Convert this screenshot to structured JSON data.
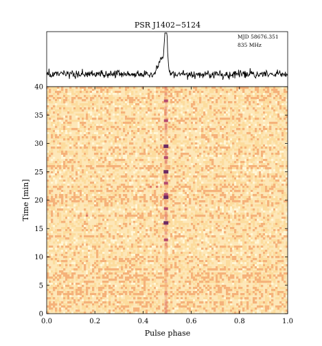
{
  "chart_data": [
    {
      "type": "line",
      "title": "PSR J1402−5124",
      "annotation_lines": [
        "MJD 58676.351",
        "835 MHz"
      ],
      "annotation_placement": "top-right",
      "xlim": [
        0.0,
        1.0
      ],
      "series_color": "#000000",
      "profile": {
        "baseline": 0.0,
        "noise_rms": 0.06,
        "peak_phase": 0.495,
        "peak_amplitude": 1.0,
        "peak_width": 0.006,
        "precursor_phase": 0.475,
        "precursor_amplitude": 0.32,
        "precursor_width": 0.012
      }
    },
    {
      "type": "heatmap",
      "xlabel": "Pulse phase",
      "ylabel": "Time [min]",
      "xlim": [
        0.0,
        1.0
      ],
      "ylim": [
        0,
        40
      ],
      "xticks": [
        0.0,
        0.2,
        0.4,
        0.6,
        0.8,
        1.0
      ],
      "xtick_labels": [
        "0.0",
        "0.2",
        "0.4",
        "0.6",
        "0.8",
        "1.0"
      ],
      "yticks": [
        0,
        5,
        10,
        15,
        20,
        25,
        30,
        35,
        40
      ],
      "ytick_labels": [
        "0",
        "5",
        "10",
        "15",
        "20",
        "25",
        "30",
        "35",
        "40"
      ],
      "colormap": [
        "#fff6d6",
        "#fcdc9e",
        "#f5b27a",
        "#e07a6a",
        "#b54a6e",
        "#6b2a63"
      ],
      "pulse_phase": 0.495,
      "pulse_width": 0.004,
      "bright_subintegrations_min": [
        13,
        16,
        18.5,
        20.5,
        21,
        23,
        25,
        27.5,
        29.5,
        34,
        37.5
      ],
      "strong_subintegrations_min": [
        16,
        20.5,
        25,
        29.5
      ]
    }
  ]
}
